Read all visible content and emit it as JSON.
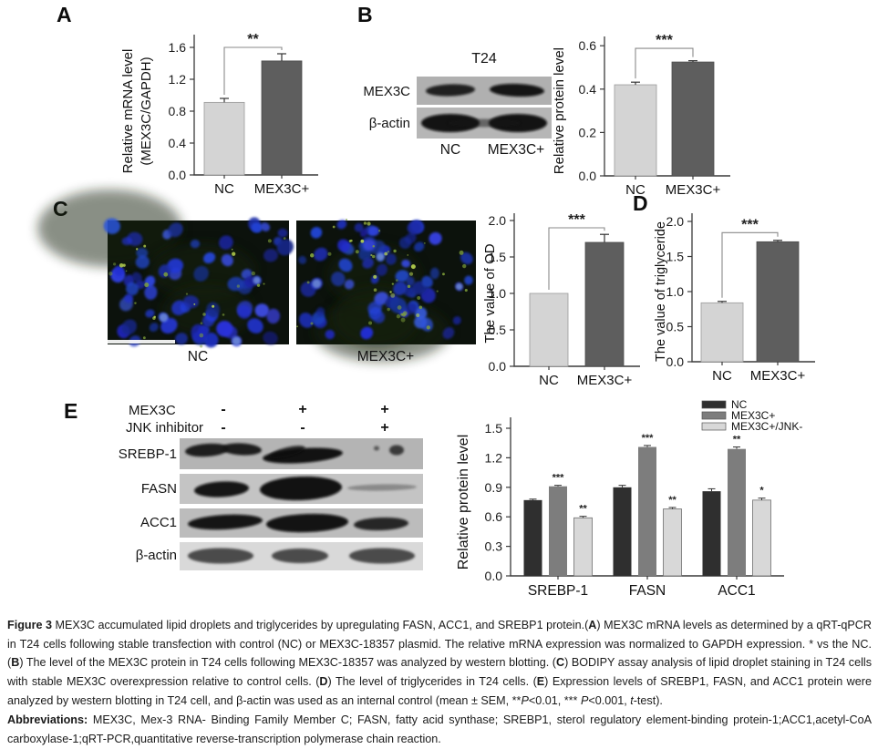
{
  "figure": {
    "panel_labels": {
      "A": "A",
      "B": "B",
      "C": "C",
      "D": "D",
      "E": "E"
    }
  },
  "panel_b_blot": {
    "title": "T24",
    "row_labels": [
      "MEX3C",
      "β-actin"
    ],
    "lane_labels": [
      "NC",
      "MEX3C+"
    ]
  },
  "panel_c": {
    "image_labels": [
      "NC",
      "MEX3C+"
    ]
  },
  "panel_e_blot": {
    "condition_rows": [
      {
        "label": "MEX3C",
        "values": [
          "-",
          "+",
          "+"
        ]
      },
      {
        "label": "JNK inhibitor",
        "values": [
          "-",
          "-",
          "+"
        ]
      }
    ],
    "row_labels": [
      "SREBP-1",
      "FASN",
      "ACC1",
      "β-actin"
    ]
  },
  "colors": {
    "light_bar": "#d4d4d4",
    "dark_bar": "#5e5e5e",
    "nc_series": "#2f2f2f",
    "mex3c_series": "#7d7d7d",
    "jnk_series": "#d8d8d8"
  },
  "chart_data": [
    {
      "id": "A",
      "type": "bar",
      "ylabel": "Relative mRNA level\n(MEX3C/GAPDH)",
      "categories": [
        "NC",
        "MEX3C+"
      ],
      "values": [
        0.91,
        1.43
      ],
      "errors": [
        0.05,
        0.09
      ],
      "yticks": [
        0.0,
        0.4,
        0.8,
        1.2,
        1.6
      ],
      "ylim": [
        0,
        1.8
      ],
      "bar_colors": [
        "#d4d4d4",
        "#5e5e5e"
      ],
      "significance": {
        "label": "**",
        "pair": [
          0,
          1
        ],
        "level": 1.6
      }
    },
    {
      "id": "B",
      "type": "bar",
      "ylabel": "Relative protein level",
      "categories": [
        "NC",
        "MEX3C+"
      ],
      "values": [
        0.42,
        0.525
      ],
      "errors": [
        0.012,
        0.006
      ],
      "yticks": [
        0.0,
        0.2,
        0.4,
        0.6
      ],
      "ylim": [
        0,
        0.66
      ],
      "bar_colors": [
        "#d4d4d4",
        "#5e5e5e"
      ],
      "significance": {
        "label": "***",
        "pair": [
          0,
          1
        ],
        "level": 0.588
      }
    },
    {
      "id": "C_od",
      "type": "bar",
      "ylabel": "The value of OD",
      "categories": [
        "NC",
        "MEX3C+"
      ],
      "values": [
        1.0,
        1.7
      ],
      "errors": [
        0,
        0.11
      ],
      "yticks": [
        0.0,
        0.5,
        1.0,
        1.5,
        2.0
      ],
      "ylim": [
        0,
        2.1
      ],
      "bar_colors": [
        "#d4d4d4",
        "#5e5e5e"
      ],
      "significance": {
        "label": "***",
        "pair": [
          0,
          1
        ],
        "level": 1.9
      }
    },
    {
      "id": "D",
      "type": "bar",
      "ylabel": "The value of triglyceride",
      "categories": [
        "NC",
        "MEX3C+"
      ],
      "values": [
        0.84,
        1.71
      ],
      "errors": [
        0.02,
        0.02
      ],
      "yticks": [
        0.0,
        0.5,
        1.0,
        1.5,
        2.0
      ],
      "ylim": [
        0,
        2.1
      ],
      "bar_colors": [
        "#d4d4d4",
        "#5e5e5e"
      ],
      "significance": {
        "label": "***",
        "pair": [
          0,
          1
        ],
        "level": 1.84
      }
    },
    {
      "id": "E",
      "type": "grouped_bar",
      "ylabel": "Relative protein level",
      "categories": [
        "SREBP-1",
        "FASN",
        "ACC1"
      ],
      "series": [
        {
          "name": "NC",
          "color": "#2f2f2f",
          "values": [
            0.77,
            0.9,
            0.86
          ],
          "errors": [
            0.01,
            0.02,
            0.025
          ],
          "stars": [
            "",
            "",
            ""
          ]
        },
        {
          "name": "MEX3C+",
          "color": "#7d7d7d",
          "values": [
            0.91,
            1.31,
            1.29
          ],
          "errors": [
            0.01,
            0.015,
            0.02
          ],
          "stars": [
            "***",
            "***",
            "**"
          ]
        },
        {
          "name": "MEX3C+/JNK-",
          "color": "#d8d8d8",
          "values": [
            0.59,
            0.68,
            0.77
          ],
          "errors": [
            0.015,
            0.015,
            0.02
          ],
          "stars": [
            "**",
            "**",
            "*"
          ]
        }
      ],
      "yticks": [
        0.0,
        0.3,
        0.6,
        0.9,
        1.2,
        1.5
      ],
      "ylim": [
        0,
        1.65
      ],
      "legend_position": "top-right"
    }
  ],
  "caption": {
    "figure_segments": [
      {
        "t": "Figure 3 ",
        "b": true
      },
      {
        "t": "MEX3C accumulated lipid droplets and triglycerides by upregulating FASN, ACC1, and SREBP1 protein.("
      },
      {
        "t": "A",
        "b": true
      },
      {
        "t": ") MEX3C mRNA levels as determined by a qRT-qPCR in T24 cells following stable transfection with control (NC) or MEX3C-18357 plasmid. The relative mRNA expression was normalized to GAPDH expression. * vs the NC. ("
      },
      {
        "t": "B",
        "b": true
      },
      {
        "t": ") The level of the MEX3C protein in T24 cells following MEX3C-18357 was analyzed by western blotting. ("
      },
      {
        "t": "C",
        "b": true
      },
      {
        "t": ") BODIPY assay analysis of lipid droplet staining in T24 cells with stable MEX3C overexpression relative to control cells. ("
      },
      {
        "t": "D",
        "b": true
      },
      {
        "t": ") The level of triglycerides in T24 cells. ("
      },
      {
        "t": "E",
        "b": true
      },
      {
        "t": ") Expression levels of SREBP1, FASN, and ACC1 protein were analyzed by western blotting in T24 cell, and β-actin was used as an internal control (mean ± SEM, **"
      },
      {
        "t": "P",
        "i": true
      },
      {
        "t": "<0.01, *** "
      },
      {
        "t": "P",
        "i": true
      },
      {
        "t": "<0.001, "
      },
      {
        "t": "t",
        "i": true
      },
      {
        "t": "-test)."
      }
    ],
    "abbrev_segments": [
      {
        "t": "Abbreviations: ",
        "b": true
      },
      {
        "t": "MEX3C, Mex-3 RNA- Binding Family Member C; FASN, fatty acid synthase; SREBP1, sterol regulatory element-binding protein-1;ACC1,acetyl-CoA carboxylase-1;qRT-PCR,quantitative reverse-transcription polymerase chain reaction."
      }
    ]
  }
}
